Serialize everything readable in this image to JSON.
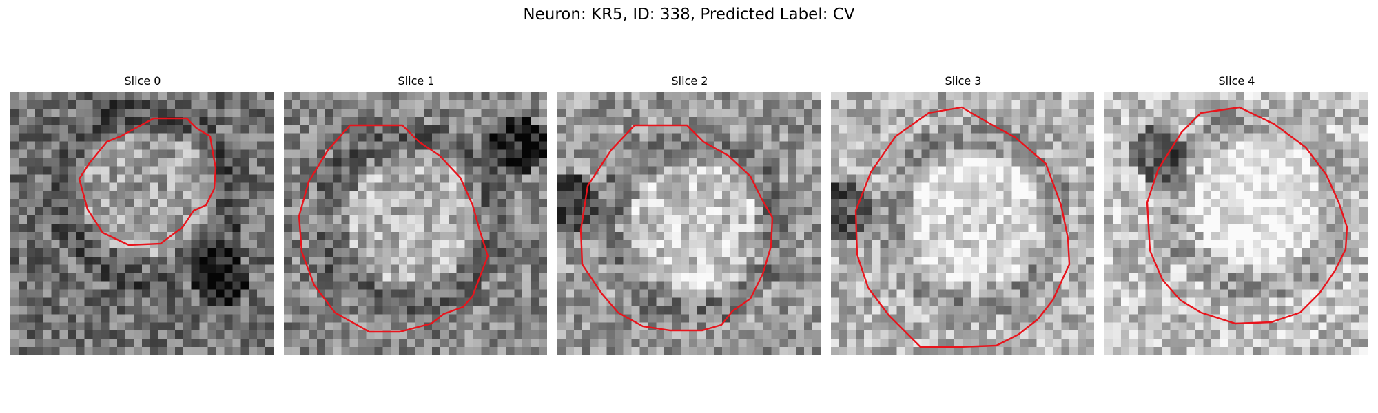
{
  "figure": {
    "title": "Neuron: KR5, ID: 338, Predicted Label: CV"
  },
  "slices": [
    {
      "label": "Slice 0",
      "tone": 0.45,
      "blob": 0.25
    },
    {
      "label": "Slice 1",
      "tone": 0.52,
      "blob": 0.2
    },
    {
      "label": "Slice 2",
      "tone": 0.6,
      "blob": 0.12
    },
    {
      "label": "Slice 3",
      "tone": 0.7,
      "blob": 0.12
    },
    {
      "label": "Slice 4",
      "tone": 0.75,
      "blob": 0.12
    }
  ],
  "colors": {
    "contour": "#e8141c"
  }
}
